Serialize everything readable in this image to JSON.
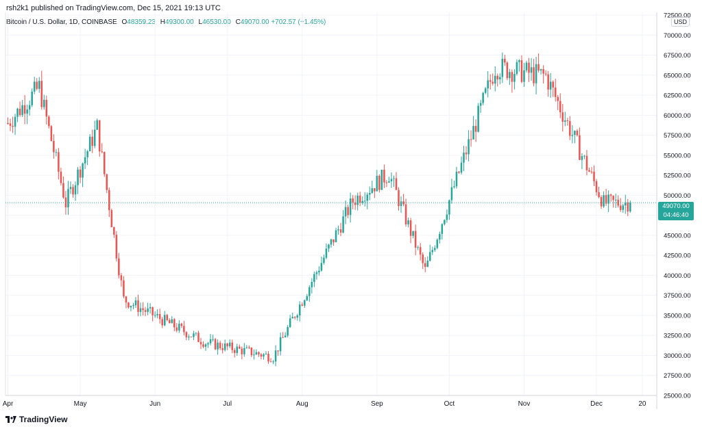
{
  "header": {
    "published": "rsh2k1 published on TradingView.com, Dec 15, 2021 19:13 UTC"
  },
  "symbol": {
    "title": "Bitcoin / U.S. Dollar, 1D, COINBASE",
    "open_label": "O",
    "open": "48359.23",
    "high_label": "H",
    "high": "49300.00",
    "low_label": "L",
    "low": "46530.00",
    "close_label": "C",
    "close": "49070.00",
    "change": "+702.57 (+1.45%)"
  },
  "currency_badge": "USD",
  "last_price": {
    "price": "49070.00",
    "countdown": "04:46:40"
  },
  "footer": {
    "brand": "TradingView"
  },
  "colors": {
    "up": "#26a69a",
    "down": "#ef5350",
    "grid": "#f0f3fa",
    "axis_text": "#131722"
  },
  "chart_data": {
    "type": "candlestick",
    "title": "Bitcoin / U.S. Dollar, 1D, COINBASE",
    "x_tick_labels": [
      "Apr",
      "May",
      "Jun",
      "Jul",
      "Aug",
      "Sep",
      "Oct",
      "Nov",
      "Dec",
      "20"
    ],
    "y_tick_labels": [
      "72500.00",
      "70000.00",
      "67500.00",
      "65000.00",
      "62500.00",
      "60000.00",
      "57500.00",
      "55000.00",
      "52500.00",
      "50000.00",
      "47500.00",
      "45000.00",
      "42500.00",
      "40000.00",
      "37500.00",
      "35000.00",
      "32500.00",
      "30000.00",
      "27500.00",
      "25000.00"
    ],
    "ylim": [
      25000,
      72500
    ],
    "last_price": 49070,
    "key_points": [
      {
        "date": "2021-04-01",
        "close": 59000
      },
      {
        "date": "2021-04-14",
        "close": 63500
      },
      {
        "date": "2021-04-25",
        "close": 49000
      },
      {
        "date": "2021-05-08",
        "close": 58500
      },
      {
        "date": "2021-05-19",
        "close": 37000
      },
      {
        "date": "2021-06-22",
        "close": 31600
      },
      {
        "date": "2021-07-20",
        "close": 29800
      },
      {
        "date": "2021-08-22",
        "close": 49300
      },
      {
        "date": "2021-09-06",
        "close": 52700
      },
      {
        "date": "2021-09-21",
        "close": 40600
      },
      {
        "date": "2021-10-20",
        "close": 66000
      },
      {
        "date": "2021-11-10",
        "close": 64900
      },
      {
        "date": "2021-12-04",
        "close": 49000
      },
      {
        "date": "2021-12-15",
        "close": 49070
      }
    ]
  }
}
